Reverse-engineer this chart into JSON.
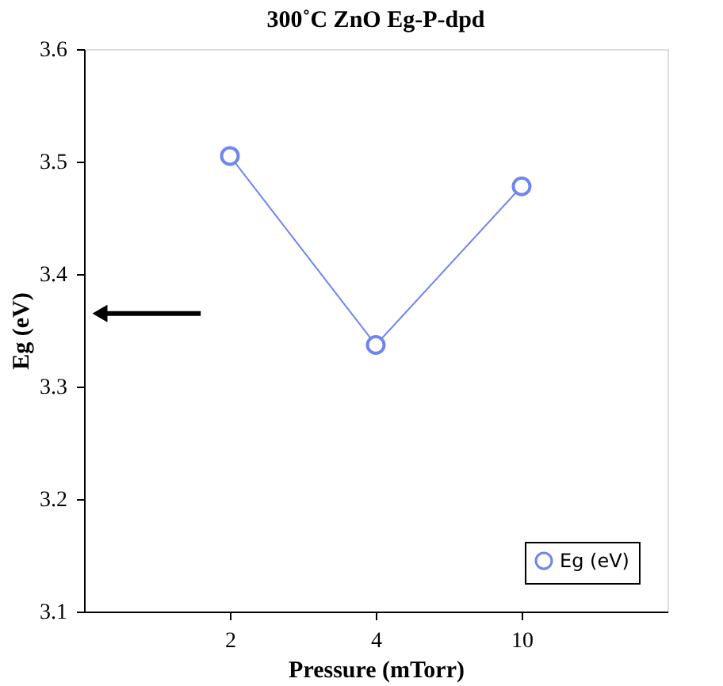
{
  "chart_data": {
    "type": "line",
    "title": "300˚C ZnO Eg-P-dpd",
    "xlabel": "Pressure (mTorr)",
    "ylabel": "Eg (eV)",
    "categories": [
      "2",
      "4",
      "10"
    ],
    "series": [
      {
        "name": "Eg (eV)",
        "color": "#6f86ee",
        "values": [
          3.505,
          3.337,
          3.478
        ]
      }
    ],
    "ylim": [
      3.1,
      3.6
    ],
    "yticks": [
      3.1,
      3.2,
      3.3,
      3.4,
      3.5,
      3.6
    ],
    "grid": false,
    "legend": "bottom right",
    "marker": "circle",
    "line_style": "solid"
  }
}
